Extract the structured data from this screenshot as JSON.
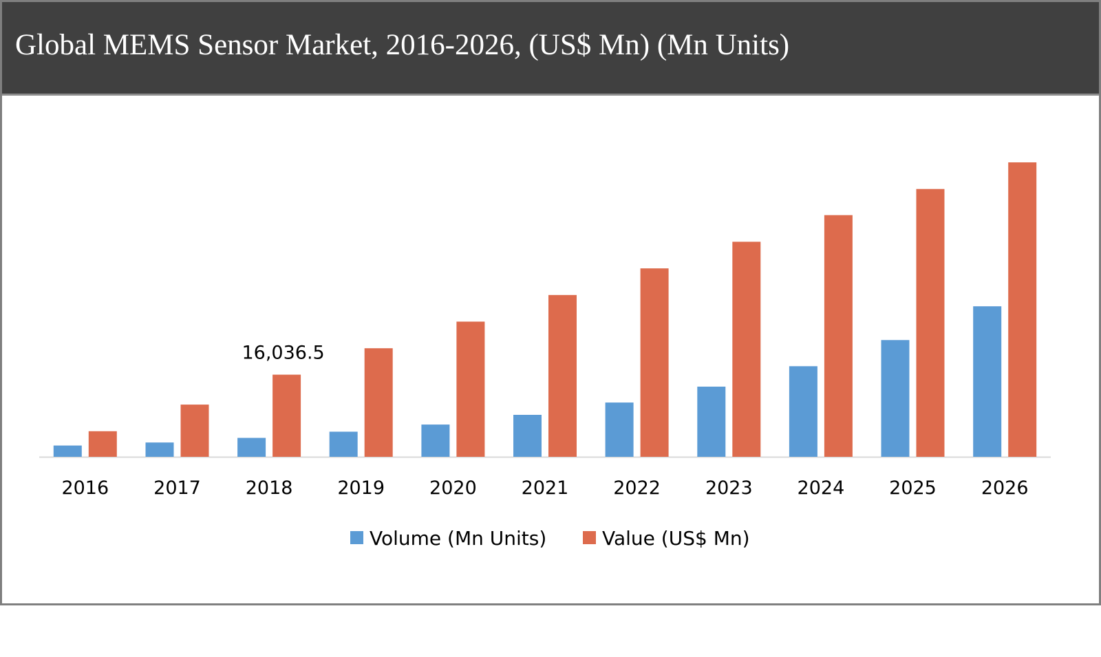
{
  "title": "Global MEMS Sensor Market, 2016-2026, (US$ Mn) (Mn Units)",
  "colors": {
    "title_bar": "#404040",
    "volume": "#5b9bd5",
    "value": "#dd6b4d",
    "axis": "#d9d9d9"
  },
  "chart_data": {
    "type": "bar",
    "title": "Global MEMS Sensor Market, 2016-2026, (US$ Mn) (Mn Units)",
    "categories": [
      "2016",
      "2017",
      "2018",
      "2019",
      "2020",
      "2021",
      "2022",
      "2023",
      "2024",
      "2025",
      "2026"
    ],
    "series": [
      {
        "name": "Volume (Mn Units)",
        "color": "#5b9bd5",
        "values": [
          2200,
          2800,
          3700,
          4900,
          6300,
          8200,
          10600,
          13700,
          17700,
          22800,
          29400
        ]
      },
      {
        "name": "Value (US$ Mn)",
        "color": "#dd6b4d",
        "values": [
          5000,
          10200,
          16036.5,
          21200,
          26400,
          31600,
          36800,
          42000,
          47200,
          52300,
          57500
        ]
      }
    ],
    "data_labels": [
      {
        "series": "Value (US$ Mn)",
        "category": "2018",
        "text": "16,036.5"
      }
    ],
    "ylim": [
      0,
      57500
    ],
    "y_axis_visible": false,
    "grid": false,
    "legend_position": "bottom"
  }
}
